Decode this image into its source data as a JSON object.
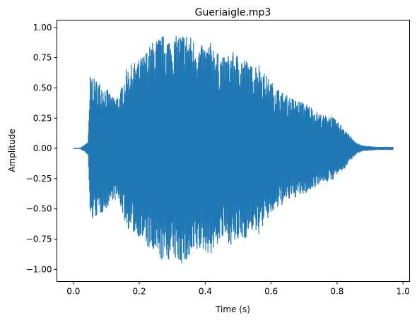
{
  "chart_data": {
    "type": "line",
    "title": "Gueriaigle.mp3",
    "xlabel": "Time (s)",
    "ylabel": "Amplitude",
    "xlim": [
      -0.05,
      1.02
    ],
    "ylim": [
      -1.1,
      1.06
    ],
    "x_ticks": [
      0.0,
      0.2,
      0.4,
      0.6,
      0.8,
      1.0
    ],
    "x_tick_labels": [
      "0.0",
      "0.2",
      "0.4",
      "0.6",
      "0.8",
      "1.0"
    ],
    "y_ticks": [
      1.0,
      0.75,
      0.5,
      0.25,
      0.0,
      -0.25,
      -0.5,
      -0.75,
      -1.0
    ],
    "y_tick_labels": [
      "1.00",
      "0.75",
      "0.50",
      "0.25",
      "0.00",
      "−0.25",
      "−0.50",
      "−0.75",
      "−1.00"
    ],
    "grid": false,
    "line_color": "#1f77b4",
    "series": [
      {
        "envelope_time": [
          0.0,
          0.02,
          0.035,
          0.045,
          0.048,
          0.052,
          0.06,
          0.08,
          0.1,
          0.12,
          0.14,
          0.16,
          0.18,
          0.2,
          0.22,
          0.24,
          0.26,
          0.28,
          0.3,
          0.32,
          0.34,
          0.36,
          0.38,
          0.4,
          0.42,
          0.44,
          0.46,
          0.48,
          0.5,
          0.52,
          0.54,
          0.56,
          0.58,
          0.6,
          0.62,
          0.64,
          0.66,
          0.68,
          0.7,
          0.72,
          0.74,
          0.76,
          0.78,
          0.8,
          0.82,
          0.84,
          0.86,
          0.88,
          0.9,
          0.92,
          0.94,
          0.97
        ],
        "envelope_amplitude": [
          0.0,
          0.0,
          0.03,
          0.06,
          0.3,
          0.64,
          0.58,
          0.55,
          0.5,
          0.42,
          0.45,
          0.65,
          0.7,
          0.73,
          0.8,
          0.88,
          0.92,
          0.94,
          0.9,
          0.95,
          0.96,
          0.92,
          0.85,
          0.85,
          0.88,
          0.78,
          0.75,
          0.8,
          0.78,
          0.75,
          0.68,
          0.72,
          0.62,
          0.55,
          0.5,
          0.45,
          0.42,
          0.4,
          0.38,
          0.35,
          0.3,
          0.27,
          0.28,
          0.22,
          0.18,
          0.1,
          0.04,
          0.02,
          0.015,
          0.01,
          0.01,
          0.01
        ]
      }
    ]
  }
}
